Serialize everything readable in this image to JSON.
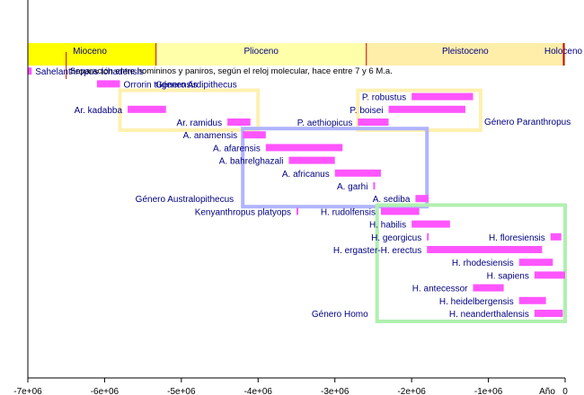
{
  "chart_data": {
    "type": "bar",
    "chart_kind": "timeline",
    "xlim": [
      -7000000,
      0
    ],
    "x_ticks": [
      {
        "value": -7000000,
        "label": "-7e+06"
      },
      {
        "value": -6000000,
        "label": "-6e+06"
      },
      {
        "value": -5000000,
        "label": "-5e+06"
      },
      {
        "value": -4000000,
        "label": "-4e+06"
      },
      {
        "value": -3000000,
        "label": "-3e+06"
      },
      {
        "value": -2000000,
        "label": "-2e+06"
      },
      {
        "value": -1000000,
        "label": "-1e+06"
      },
      {
        "value": 0,
        "label": "0"
      }
    ],
    "x_axis_label": "Año",
    "epochs": [
      {
        "name": "Mioceno",
        "start": -7000000,
        "end": -5330000,
        "color": "#ffff00"
      },
      {
        "name": "Plioceno",
        "start": -5330000,
        "end": -2590000,
        "color": "#ffffaa"
      },
      {
        "name": "Pleistoceno",
        "start": -2590000,
        "end": -12000,
        "color": "#ffeeaa"
      },
      {
        "name": "Holoceno",
        "start": -12000,
        "end": 0,
        "color": "#ffeeaa"
      }
    ],
    "note": {
      "text": "Separación entre homininos y paniros, según el reloj molecular, hace entre 7 y 6 M.a.",
      "start": -7000000,
      "end": -6000000
    },
    "genus_boxes": [
      {
        "label": "Género Ardipithecus",
        "start": -5800000,
        "end": -4000000,
        "row_from": 3,
        "row_to": 5,
        "color": "#fff0b0",
        "label_pos": "top"
      },
      {
        "label": "Género Paranthropus",
        "start": -2700000,
        "end": -1100000,
        "row_from": 3,
        "row_to": 5,
        "color": "#fff0b0",
        "label_pos": "right"
      },
      {
        "label": "Género Australopithecus",
        "start": -4200000,
        "end": -1800000,
        "row_from": 6,
        "row_to": 11,
        "color": "#b0b4ff",
        "label_pos": "left"
      },
      {
        "label": "Género Homo",
        "start": -2450000,
        "end": 0,
        "row_from": 12,
        "row_to": 20,
        "color": "#b0f0b0",
        "label_pos": "left"
      }
    ],
    "series": [
      {
        "name": "Sahelanthropus tchadensis",
        "start": -7000000,
        "end": -6950000,
        "row": 1,
        "label_side": "right"
      },
      {
        "name": "Orrorin tugenensis",
        "start": -6100000,
        "end": -5800000,
        "row": 2,
        "label_side": "right"
      },
      {
        "name": "Ar. kadabba",
        "start": -5700000,
        "end": -5200000,
        "row": 4,
        "label_side": "left"
      },
      {
        "name": "Ar. ramidus",
        "start": -4400000,
        "end": -4100000,
        "row": 5,
        "label_side": "left"
      },
      {
        "name": "P. robustus",
        "start": -2000000,
        "end": -1200000,
        "row": 3,
        "label_side": "left"
      },
      {
        "name": "P. boisei",
        "start": -2300000,
        "end": -1300000,
        "row": 4,
        "label_side": "left"
      },
      {
        "name": "P. aethiopicus",
        "start": -2700000,
        "end": -2300000,
        "row": 5,
        "label_side": "left"
      },
      {
        "name": "A. anamensis",
        "start": -4200000,
        "end": -3900000,
        "row": 6,
        "label_side": "left"
      },
      {
        "name": "A. afarensis",
        "start": -3900000,
        "end": -2900000,
        "row": 7,
        "label_side": "left"
      },
      {
        "name": "A. bahrelghazali",
        "start": -3600000,
        "end": -3000000,
        "row": 8,
        "label_side": "left"
      },
      {
        "name": "A. africanus",
        "start": -3000000,
        "end": -2400000,
        "row": 9,
        "label_side": "left"
      },
      {
        "name": "A. garhi",
        "start": -2500000,
        "end": -2500000,
        "row": 10,
        "label_side": "left"
      },
      {
        "name": "A. sediba",
        "start": -1950000,
        "end": -1780000,
        "row": 11,
        "label_side": "left"
      },
      {
        "name": "Kenyanthropus platyops",
        "start": -3500000,
        "end": -3500000,
        "row": 12,
        "label_side": "left"
      },
      {
        "name": "H. rudolfensis",
        "start": -2400000,
        "end": -1900000,
        "row": 12,
        "label_side": "left"
      },
      {
        "name": "H. habilis",
        "start": -2000000,
        "end": -1500000,
        "row": 13,
        "label_side": "left"
      },
      {
        "name": "H. georgicus",
        "start": -1800000,
        "end": -1800000,
        "row": 14,
        "label_side": "left"
      },
      {
        "name": "H. floresiensis",
        "start": -190000,
        "end": -50000,
        "row": 14,
        "label_side": "left"
      },
      {
        "name": "H. ergaster-H. erectus",
        "start": -1800000,
        "end": -300000,
        "row": 15,
        "label_side": "left"
      },
      {
        "name": "H. rhodesiensis",
        "start": -600000,
        "end": -160000,
        "row": 16,
        "label_side": "left"
      },
      {
        "name": "H. sapiens",
        "start": -400000,
        "end": 0,
        "row": 17,
        "label_side": "left"
      },
      {
        "name": "H. antecessor",
        "start": -1200000,
        "end": -800000,
        "row": 18,
        "label_side": "left"
      },
      {
        "name": "H. heidelbergensis",
        "start": -600000,
        "end": -250000,
        "row": 19,
        "label_side": "left"
      },
      {
        "name": "H. neanderthalensis",
        "start": -400000,
        "end": -30000,
        "row": 20,
        "label_side": "left"
      }
    ]
  }
}
